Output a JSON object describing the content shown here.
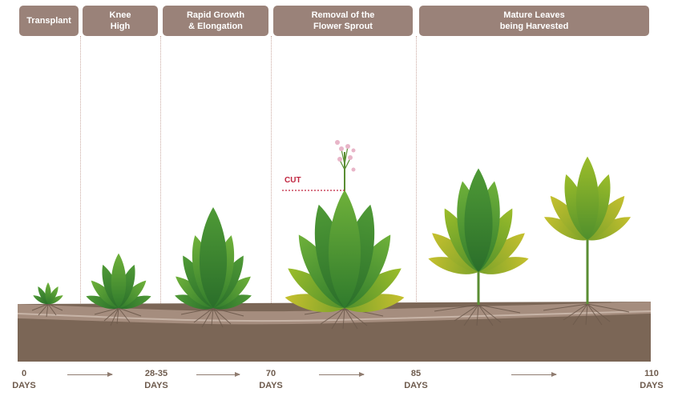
{
  "stages": [
    {
      "label": "Transplant"
    },
    {
      "label": "Knee\nHigh"
    },
    {
      "label": "Rapid Growth\n& Elongation"
    },
    {
      "label": "Removal of the\nFlower Sprout"
    },
    {
      "label": "Mature Leaves\nbeing Harvested"
    }
  ],
  "cut_label": "CUT",
  "timeline": [
    {
      "label": "0\nDAYS"
    },
    {
      "label": "28-35\nDAYS"
    },
    {
      "label": "70\nDAYS"
    },
    {
      "label": "85\nDAYS"
    },
    {
      "label": "110\nDAYS"
    }
  ],
  "colors": {
    "header": "#9a8279",
    "soil_top": "#a58d7e",
    "soil_body": "#7b6656",
    "leaf_dark": "#2f7a2c",
    "leaf_mid": "#5aa238",
    "leaf_light": "#9cbd2a",
    "leaf_yellow": "#b9b22a",
    "cut": "#c0243f",
    "flower": "#e8b5c8"
  }
}
